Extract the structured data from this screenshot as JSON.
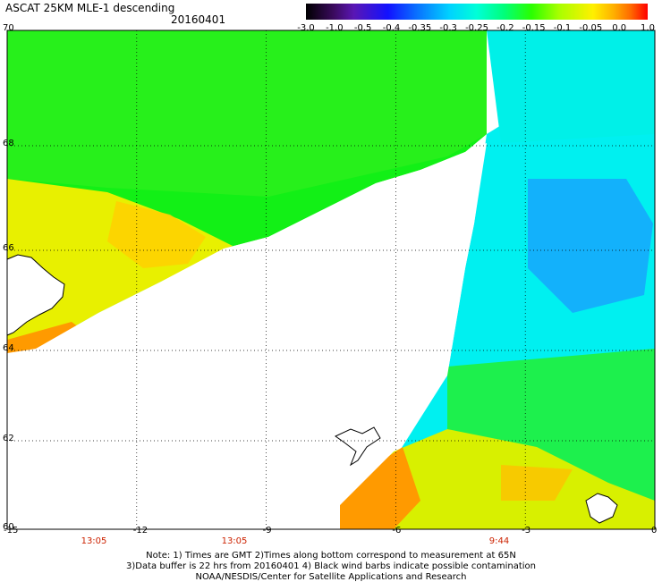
{
  "title": "ASCAT 25KM MLE-1 descending",
  "date": "20160401",
  "colorbar": {
    "ticks": [
      "-3.0",
      "-1.0",
      "-0.5",
      "-0.4",
      "-0.35",
      "-0.3",
      "-0.25",
      "-0.2",
      "-0.15",
      "-0.1",
      "-0.05",
      "0.0",
      "1.0"
    ]
  },
  "axes": {
    "lat_ticks": [
      "70",
      "68",
      "66",
      "64",
      "62",
      "60"
    ],
    "lon_ticks": [
      "-15",
      "-12",
      "-9",
      "-6",
      "-3",
      "0"
    ],
    "time_labels": [
      "13:05",
      "13:05",
      "9:44"
    ]
  },
  "notes": {
    "line1": "Note: 1) Times are GMT 2)Times along bottom correspond to measurement at 65N",
    "line2": "3)Data buffer is 22 hrs from 20160401 4) Black wind barbs indicate possible contamination",
    "line3": "NOAA/NESDIS/Center for Satellite Applications and Research"
  },
  "colors": {
    "green": "#00f020",
    "yellow_green": "#b0f000",
    "yellow": "#f0f000",
    "orange": "#ffa000",
    "cyan": "#00f0f0",
    "blue": "#0a90ff"
  }
}
